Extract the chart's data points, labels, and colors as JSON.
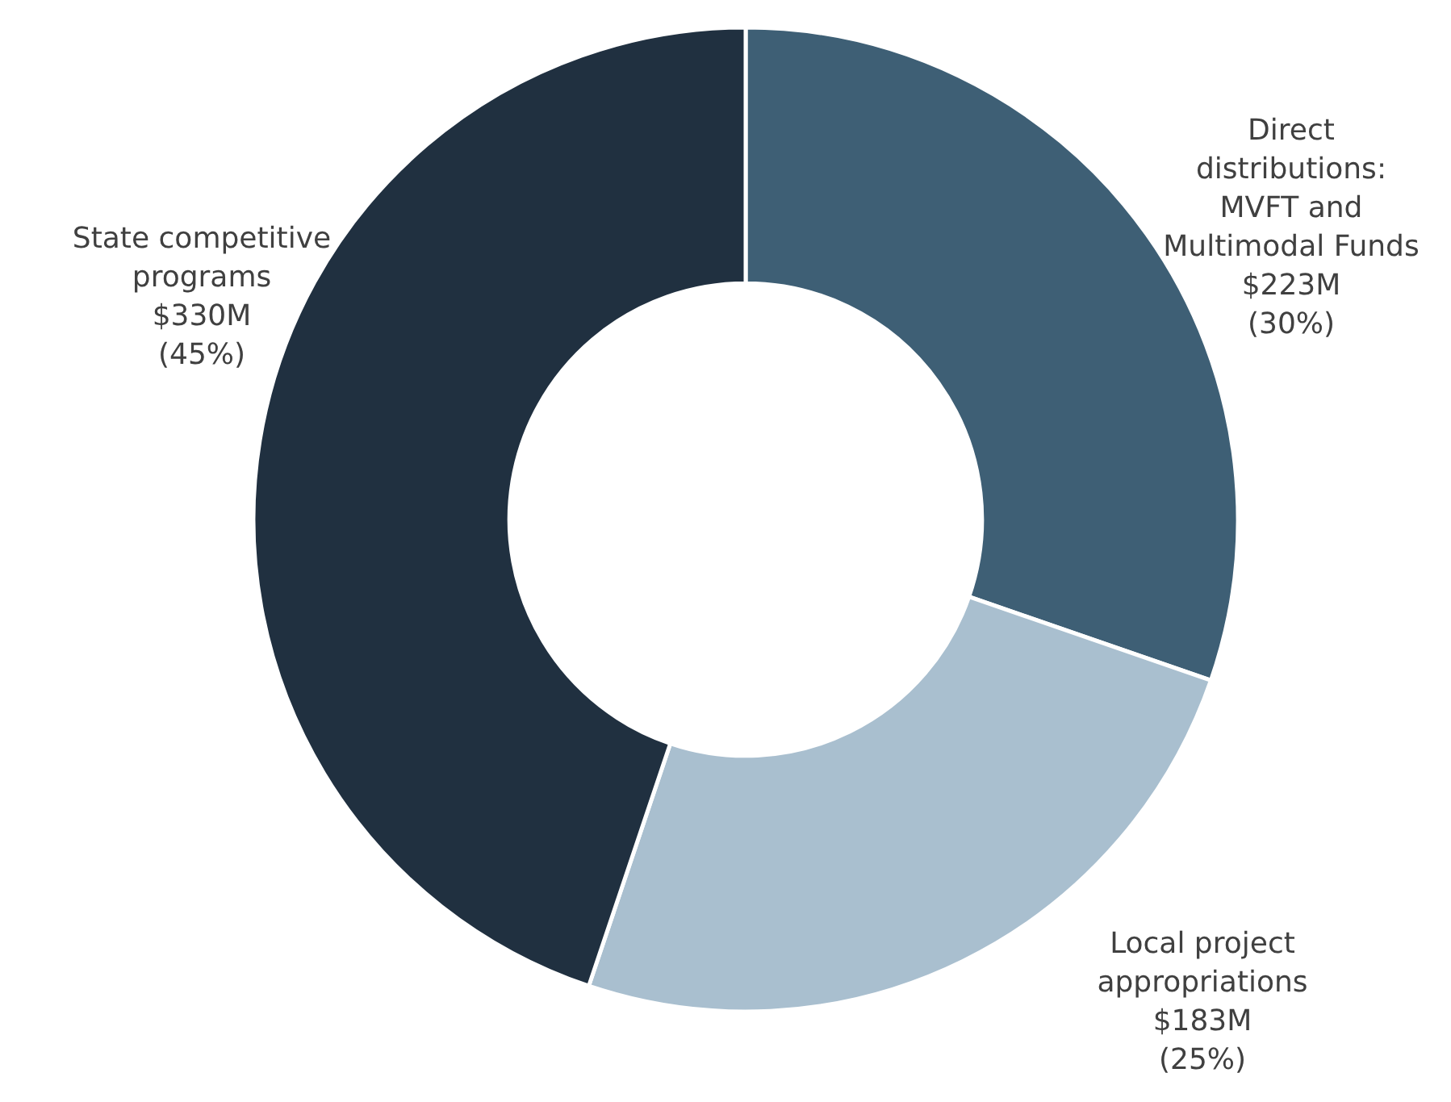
{
  "chart_data": {
    "type": "donut",
    "categories": [
      "Direct distributions: MVFT and Multimodal Funds",
      "Local project appropriations",
      "State competitive programs"
    ],
    "values": [
      223,
      183,
      330
    ],
    "value_labels": [
      "$223M",
      "$183M",
      "$330M"
    ],
    "annotations": [
      "(30%)",
      "(25%)",
      "(45%)"
    ],
    "colors": [
      "#3e5f75",
      "#a9bfcf",
      "#203040"
    ]
  }
}
